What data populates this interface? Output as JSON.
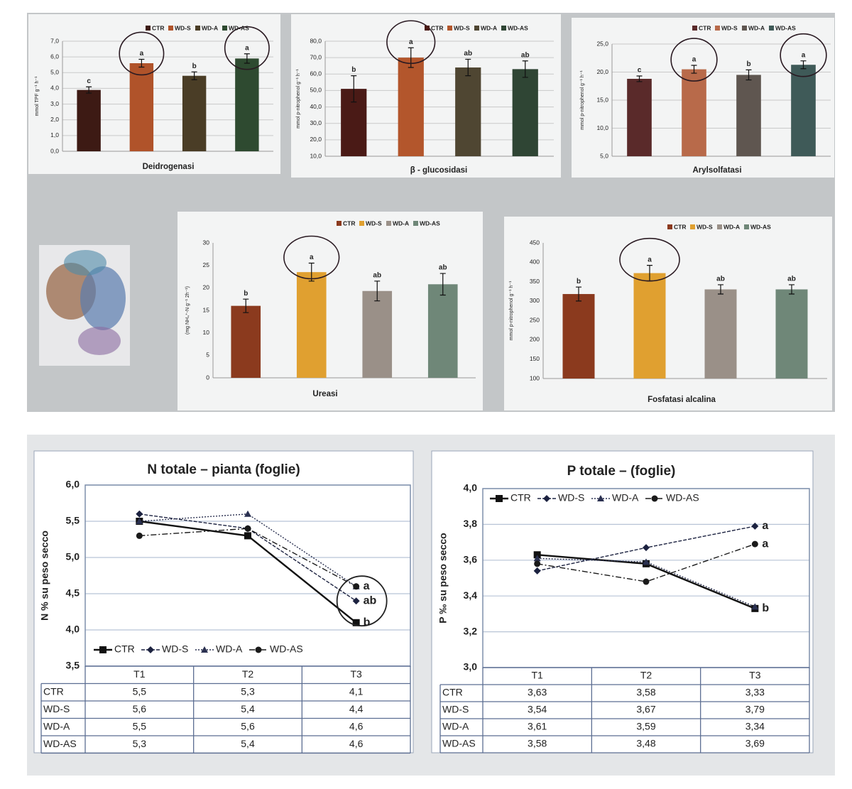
{
  "chart_data": [
    {
      "type": "bar",
      "title": "Deidrogenasi",
      "y_label": "mmol TPF g⁻¹ h⁻¹",
      "categories": [
        "CTR",
        "WD-S",
        "WD-A",
        "WD-AS"
      ],
      "colors": [
        "#3d1a14",
        "#b0532a",
        "#4a3d26",
        "#2e4a30"
      ],
      "values": [
        3.9,
        5.6,
        4.8,
        5.9
      ],
      "errors": [
        0.2,
        0.25,
        0.25,
        0.3
      ],
      "annotations": [
        "c",
        "a",
        "b",
        "a"
      ],
      "ylim": [
        0,
        7
      ],
      "yticks": [
        {
          "value": 0,
          "label": "0,0"
        },
        {
          "value": 1,
          "label": "1,0"
        },
        {
          "value": 2,
          "label": "2,0"
        },
        {
          "value": 3,
          "label": "3,0"
        },
        {
          "value": 4,
          "label": "4,0"
        },
        {
          "value": 5,
          "label": "5,0"
        },
        {
          "value": 6,
          "label": "6,0"
        },
        {
          "value": 7,
          "label": "7,0"
        }
      ],
      "grid": true,
      "legend": "top-right"
    },
    {
      "type": "bar",
      "title": "β - glucosidasi",
      "y_label": "mmol p-nitrophenol g⁻¹ h⁻¹",
      "categories": [
        "CTR",
        "WD-S",
        "WD-A",
        "WD-AS"
      ],
      "colors": [
        "#4a1a16",
        "#b3562c",
        "#4f4632",
        "#2f4534"
      ],
      "values": [
        51,
        70,
        64,
        63
      ],
      "errors": [
        8,
        6,
        5,
        5
      ],
      "annotations": [
        "b",
        "a",
        "ab",
        "ab"
      ],
      "ylim": [
        10,
        80
      ],
      "yticks": [
        {
          "value": 10,
          "label": "10,0"
        },
        {
          "value": 20,
          "label": "20,0"
        },
        {
          "value": 30,
          "label": "30,0"
        },
        {
          "value": 40,
          "label": "40,0"
        },
        {
          "value": 50,
          "label": "50,0"
        },
        {
          "value": 60,
          "label": "60,0"
        },
        {
          "value": 70,
          "label": "70,0"
        },
        {
          "value": 80,
          "label": "80,0"
        }
      ],
      "grid": true,
      "legend": "top-right"
    },
    {
      "type": "bar",
      "title": "Arylsolfatasi",
      "y_label": "mmol p-nitrophenol g⁻¹ h⁻¹",
      "categories": [
        "CTR",
        "WD-S",
        "WD-A",
        "WD-AS"
      ],
      "colors": [
        "#5a2a2a",
        "#b86a4a",
        "#5f5650",
        "#3f5a58"
      ],
      "values": [
        18.8,
        20.5,
        19.5,
        21.3
      ],
      "errors": [
        0.5,
        0.7,
        0.9,
        0.7
      ],
      "annotations": [
        "c",
        "a",
        "b",
        "a"
      ],
      "ylim": [
        5,
        25
      ],
      "yticks": [
        {
          "value": 5,
          "label": "5,0"
        },
        {
          "value": 10,
          "label": "10,0"
        },
        {
          "value": 15,
          "label": "15,0"
        },
        {
          "value": 20,
          "label": "20,0"
        },
        {
          "value": 25,
          "label": "25,0"
        }
      ],
      "grid": true,
      "legend": "top-right"
    },
    {
      "type": "bar",
      "title": "Ureasi",
      "y_label": "(mg NH₄⁺-N g⁻¹ 2h⁻¹)",
      "categories": [
        "CTR",
        "WD-S",
        "WD-A",
        "WD-AS"
      ],
      "colors": [
        "#8b3a1e",
        "#e0a030",
        "#9a9088",
        "#6f8778"
      ],
      "values": [
        16,
        23.5,
        19.3,
        20.8
      ],
      "errors": [
        1.5,
        2,
        2.2,
        2.4
      ],
      "annotations": [
        "b",
        "a",
        "ab",
        "ab"
      ],
      "ylim": [
        0,
        30
      ],
      "yticks": [
        0,
        5,
        10,
        15,
        20,
        25,
        30
      ],
      "grid": false,
      "legend": "top-right"
    },
    {
      "type": "bar",
      "title": "Fosfatasi alcalina",
      "y_label": "mmol p-nitrophenol g⁻¹ h⁻¹",
      "categories": [
        "CTR",
        "WD-S",
        "WD-A",
        "WD-AS"
      ],
      "colors": [
        "#8b3a1e",
        "#e0a030",
        "#9a9088",
        "#6f8778"
      ],
      "values": [
        318,
        372,
        330,
        330
      ],
      "errors": [
        18,
        20,
        12,
        12
      ],
      "annotations": [
        "b",
        "a",
        "ab",
        "ab"
      ],
      "ylim": [
        100,
        450
      ],
      "yticks": [
        100,
        150,
        200,
        250,
        300,
        350,
        400,
        450
      ],
      "grid": false,
      "legend": "top-right"
    },
    {
      "type": "line",
      "title": "N totale – pianta (foglie)",
      "y_label": "N % su peso secco",
      "categories": [
        "T1",
        "T2",
        "T3"
      ],
      "series": [
        {
          "name": "CTR",
          "color": "#111111",
          "values": [
            5.5,
            5.3,
            4.1
          ],
          "value_labels": [
            "5,5",
            "5,3",
            "4,1"
          ]
        },
        {
          "name": "WD-S",
          "color": "#1c2240",
          "values": [
            5.6,
            5.4,
            4.4
          ],
          "value_labels": [
            "5,6",
            "5,4",
            "4,4"
          ]
        },
        {
          "name": "WD-A",
          "color": "#2a3050",
          "values": [
            5.5,
            5.6,
            4.6
          ],
          "value_labels": [
            "5,5",
            "5,6",
            "4,6"
          ]
        },
        {
          "name": "WD-AS",
          "color": "#1a1a1a",
          "values": [
            5.3,
            5.4,
            4.6
          ],
          "value_labels": [
            "5,3",
            "5,4",
            "4,6"
          ]
        }
      ],
      "annotations": [
        "a",
        "ab",
        "b"
      ],
      "ylim": [
        3.5,
        6
      ],
      "yticks": [
        {
          "value": 3.5,
          "label": "3,5"
        },
        {
          "value": 4,
          "label": "4,0"
        },
        {
          "value": 4.5,
          "label": "4,5"
        },
        {
          "value": 5,
          "label": "5,0"
        },
        {
          "value": 5.5,
          "label": "5,5"
        },
        {
          "value": 6,
          "label": "6,0"
        }
      ],
      "grid": true,
      "legend": "bottom-left"
    },
    {
      "type": "line",
      "title": "P totale – (foglie)",
      "y_label": "P ‰ su peso secco",
      "categories": [
        "T1",
        "T2",
        "T3"
      ],
      "series": [
        {
          "name": "CTR",
          "color": "#111111",
          "values": [
            3.63,
            3.58,
            3.33
          ],
          "value_labels": [
            "3,63",
            "3,58",
            "3,33"
          ]
        },
        {
          "name": "WD-S",
          "color": "#1c2240",
          "values": [
            3.54,
            3.67,
            3.79
          ],
          "value_labels": [
            "3,54",
            "3,67",
            "3,79"
          ]
        },
        {
          "name": "WD-A",
          "color": "#2a3050",
          "values": [
            3.61,
            3.59,
            3.34
          ],
          "value_labels": [
            "3,61",
            "3,59",
            "3,34"
          ]
        },
        {
          "name": "WD-AS",
          "color": "#1a1a1a",
          "values": [
            3.58,
            3.48,
            3.69
          ],
          "value_labels": [
            "3,58",
            "3,48",
            "3,69"
          ]
        }
      ],
      "annotations": [
        "a",
        "a",
        "b"
      ],
      "ylim": [
        3,
        4
      ],
      "yticks": [
        {
          "value": 3,
          "label": "3,0"
        },
        {
          "value": 3.2,
          "label": "3,2"
        },
        {
          "value": 3.4,
          "label": "3,4"
        },
        {
          "value": 3.6,
          "label": "3,6"
        },
        {
          "value": 3.8,
          "label": "3,8"
        },
        {
          "value": 4,
          "label": "4,0"
        }
      ],
      "grid": true,
      "legend": "top-left"
    }
  ]
}
